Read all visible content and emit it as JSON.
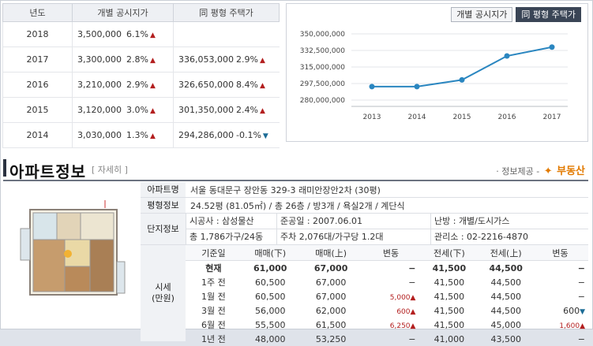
{
  "price_table": {
    "headers": [
      "년도",
      "개별 공시지가",
      "同 평형 주택가"
    ],
    "rows": [
      {
        "year": "2018",
        "price": "3,500,000",
        "pct": "6.1%",
        "dir": "up",
        "house": "",
        "house_pct": "",
        "house_dir": ""
      },
      {
        "year": "2017",
        "price": "3,300,000",
        "pct": "2.8%",
        "dir": "up",
        "house": "336,053,000",
        "house_pct": "2.9%",
        "house_dir": "up"
      },
      {
        "year": "2016",
        "price": "3,210,000",
        "pct": "2.9%",
        "dir": "up",
        "house": "326,650,000",
        "house_pct": "8.4%",
        "house_dir": "up"
      },
      {
        "year": "2015",
        "price": "3,120,000",
        "pct": "3.0%",
        "dir": "up",
        "house": "301,350,000",
        "house_pct": "2.4%",
        "house_dir": "up"
      },
      {
        "year": "2014",
        "price": "3,030,000",
        "pct": "1.3%",
        "dir": "up",
        "house": "294,286,000",
        "house_pct": "-0.1%",
        "house_dir": "down"
      }
    ]
  },
  "chart_tabs": [
    "개별 공시지가",
    "同 평형 주택가"
  ],
  "chart_data": {
    "type": "line",
    "x": [
      "2013",
      "2014",
      "2015",
      "2016",
      "2017"
    ],
    "values": [
      294300000,
      294286000,
      301350000,
      326650000,
      336053000
    ],
    "yticks": [
      "350,000,000",
      "332,500,000",
      "315,000,000",
      "297,500,000",
      "280,000,000"
    ],
    "ylim": [
      280000000,
      350000000
    ],
    "color": "#2a86c0"
  },
  "apartment": {
    "title": "아파트정보",
    "detail": "[ 자세히 ]",
    "provider_prefix": "· 정보제공 -",
    "provider_brand": "부동산",
    "name_label": "아파트명",
    "name": "서울 동대문구 장안동 329-3 래미안장안2차 (30평)",
    "size_label": "평형정보",
    "size": "24.52평 (81.05㎡) / 총 26층 / 방3개 / 욕실2개 / 계단식",
    "complex_label": "단지정보",
    "builder": "시공사 : 삼성물산",
    "completion": "준공일 : 2007.06.01",
    "heating": "난방 : 개별/도시가스",
    "households": "총 1,786가구/24동",
    "parking": "주차 2,076대/가구당 1.2대",
    "office": "관리소 : 02-2216-4870",
    "sise_label": "시세",
    "sise_unit": "(만원)",
    "sise_headers": [
      "기준일",
      "매매(下)",
      "매매(上)",
      "변동",
      "전세(下)",
      "전세(上)",
      "변동"
    ],
    "sise_rows": [
      {
        "date": "현재",
        "sl": "61,000",
        "sh": "67,000",
        "sc": "−",
        "scd": "",
        "jl": "41,500",
        "jh": "44,500",
        "jc": "−",
        "jcd": ""
      },
      {
        "date": "1주 전",
        "sl": "60,500",
        "sh": "67,000",
        "sc": "−",
        "scd": "",
        "jl": "41,500",
        "jh": "44,500",
        "jc": "−",
        "jcd": ""
      },
      {
        "date": "1월 전",
        "sl": "60,500",
        "sh": "67,000",
        "sc": "5,000",
        "scd": "up",
        "jl": "41,500",
        "jh": "44,500",
        "jc": "−",
        "jcd": ""
      },
      {
        "date": "3월 전",
        "sl": "56,000",
        "sh": "62,000",
        "sc": "600",
        "scd": "up",
        "jl": "41,500",
        "jh": "44,500",
        "jc": "600",
        "jcd": "down"
      },
      {
        "date": "6월 전",
        "sl": "55,500",
        "sh": "61,500",
        "sc": "6,250",
        "scd": "up",
        "jl": "41,500",
        "jh": "45,000",
        "jc": "1,600",
        "jcd": "up"
      },
      {
        "date": "1년 전",
        "sl": "48,000",
        "sh": "53,250",
        "sc": "−",
        "scd": "",
        "jl": "41,000",
        "jh": "43,500",
        "jc": "−",
        "jcd": ""
      }
    ]
  }
}
